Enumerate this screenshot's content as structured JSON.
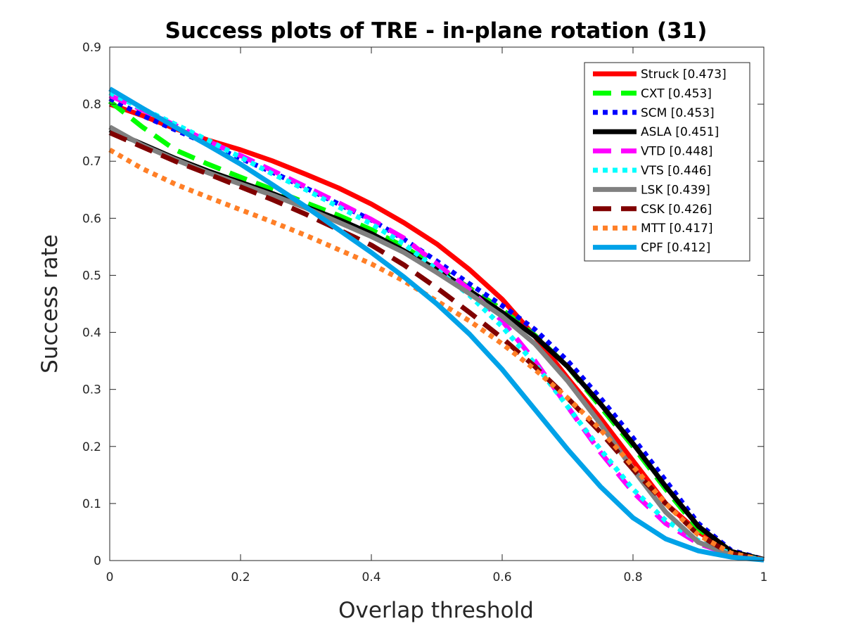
{
  "chart_data": {
    "type": "line",
    "title": "Success plots of TRE - in-plane rotation (31)",
    "xlabel": "Overlap threshold",
    "ylabel": "Success rate",
    "xlim": [
      0,
      1
    ],
    "ylim": [
      0,
      0.9
    ],
    "xticks": [
      "0",
      "0.2",
      "0.4",
      "0.6",
      "0.8",
      "1"
    ],
    "yticks": [
      "0",
      "0.1",
      "0.2",
      "0.3",
      "0.4",
      "0.5",
      "0.6",
      "0.7",
      "0.8",
      "0.9"
    ],
    "grid": false,
    "legend_position": "top-right",
    "x": [
      0,
      0.05,
      0.1,
      0.15,
      0.2,
      0.25,
      0.3,
      0.35,
      0.4,
      0.45,
      0.5,
      0.55,
      0.6,
      0.65,
      0.7,
      0.75,
      0.8,
      0.85,
      0.9,
      0.95,
      1.0
    ],
    "series": [
      {
        "name": "Struck [0.473]",
        "color": "#ff0000",
        "dash": "solid",
        "values": [
          0.8,
          0.78,
          0.757,
          0.737,
          0.72,
          0.7,
          0.677,
          0.653,
          0.625,
          0.592,
          0.555,
          0.51,
          0.458,
          0.393,
          0.32,
          0.25,
          0.175,
          0.1,
          0.05,
          0.015,
          0.002
        ]
      },
      {
        "name": "CXT [0.453]",
        "color": "#00ff00",
        "dash": "dash",
        "values": [
          0.805,
          0.76,
          0.72,
          0.695,
          0.672,
          0.65,
          0.627,
          0.605,
          0.58,
          0.55,
          0.515,
          0.478,
          0.44,
          0.395,
          0.34,
          0.27,
          0.2,
          0.125,
          0.055,
          0.015,
          0.002
        ]
      },
      {
        "name": "SCM [0.453]",
        "color": "#0000ff",
        "dash": "dot",
        "values": [
          0.81,
          0.78,
          0.755,
          0.73,
          0.705,
          0.68,
          0.653,
          0.625,
          0.597,
          0.563,
          0.525,
          0.485,
          0.447,
          0.405,
          0.35,
          0.285,
          0.215,
          0.14,
          0.065,
          0.018,
          0.002
        ]
      },
      {
        "name": "ASLA [0.451]",
        "color": "#000000",
        "dash": "solid",
        "values": [
          0.755,
          0.73,
          0.705,
          0.683,
          0.663,
          0.643,
          0.62,
          0.598,
          0.573,
          0.543,
          0.51,
          0.473,
          0.435,
          0.393,
          0.34,
          0.275,
          0.205,
          0.13,
          0.06,
          0.016,
          0.002
        ]
      },
      {
        "name": "VTD [0.448]",
        "color": "#ff00ff",
        "dash": "dash",
        "values": [
          0.815,
          0.79,
          0.763,
          0.735,
          0.71,
          0.683,
          0.655,
          0.627,
          0.598,
          0.565,
          0.52,
          0.475,
          0.42,
          0.35,
          0.27,
          0.19,
          0.12,
          0.065,
          0.03,
          0.01,
          0.001
        ]
      },
      {
        "name": "VTS [0.446]",
        "color": "#00ffff",
        "dash": "dot",
        "values": [
          0.82,
          0.792,
          0.765,
          0.737,
          0.707,
          0.677,
          0.65,
          0.62,
          0.59,
          0.555,
          0.51,
          0.465,
          0.41,
          0.345,
          0.27,
          0.195,
          0.125,
          0.07,
          0.035,
          0.012,
          0.001
        ]
      },
      {
        "name": "LSK [0.439]",
        "color": "#808080",
        "dash": "solid",
        "values": [
          0.76,
          0.728,
          0.703,
          0.68,
          0.66,
          0.64,
          0.618,
          0.593,
          0.568,
          0.54,
          0.505,
          0.468,
          0.428,
          0.38,
          0.315,
          0.24,
          0.16,
          0.085,
          0.032,
          0.01,
          0.001
        ]
      },
      {
        "name": "CSK [0.426]",
        "color": "#800000",
        "dash": "dash",
        "values": [
          0.75,
          0.725,
          0.7,
          0.678,
          0.655,
          0.632,
          0.607,
          0.58,
          0.553,
          0.518,
          0.478,
          0.435,
          0.39,
          0.34,
          0.285,
          0.225,
          0.16,
          0.1,
          0.045,
          0.012,
          0.001
        ]
      },
      {
        "name": "MTT [0.417]",
        "color": "#ff7f27",
        "dash": "dot",
        "values": [
          0.72,
          0.687,
          0.66,
          0.637,
          0.615,
          0.593,
          0.57,
          0.545,
          0.52,
          0.49,
          0.455,
          0.42,
          0.38,
          0.335,
          0.285,
          0.23,
          0.165,
          0.1,
          0.045,
          0.013,
          0.001
        ]
      },
      {
        "name": "CPF [0.412]",
        "color": "#00a2e8",
        "dash": "solid",
        "values": [
          0.827,
          0.793,
          0.76,
          0.728,
          0.695,
          0.658,
          0.62,
          0.58,
          0.54,
          0.497,
          0.45,
          0.397,
          0.335,
          0.265,
          0.195,
          0.13,
          0.075,
          0.038,
          0.017,
          0.006,
          0.001
        ]
      }
    ]
  }
}
